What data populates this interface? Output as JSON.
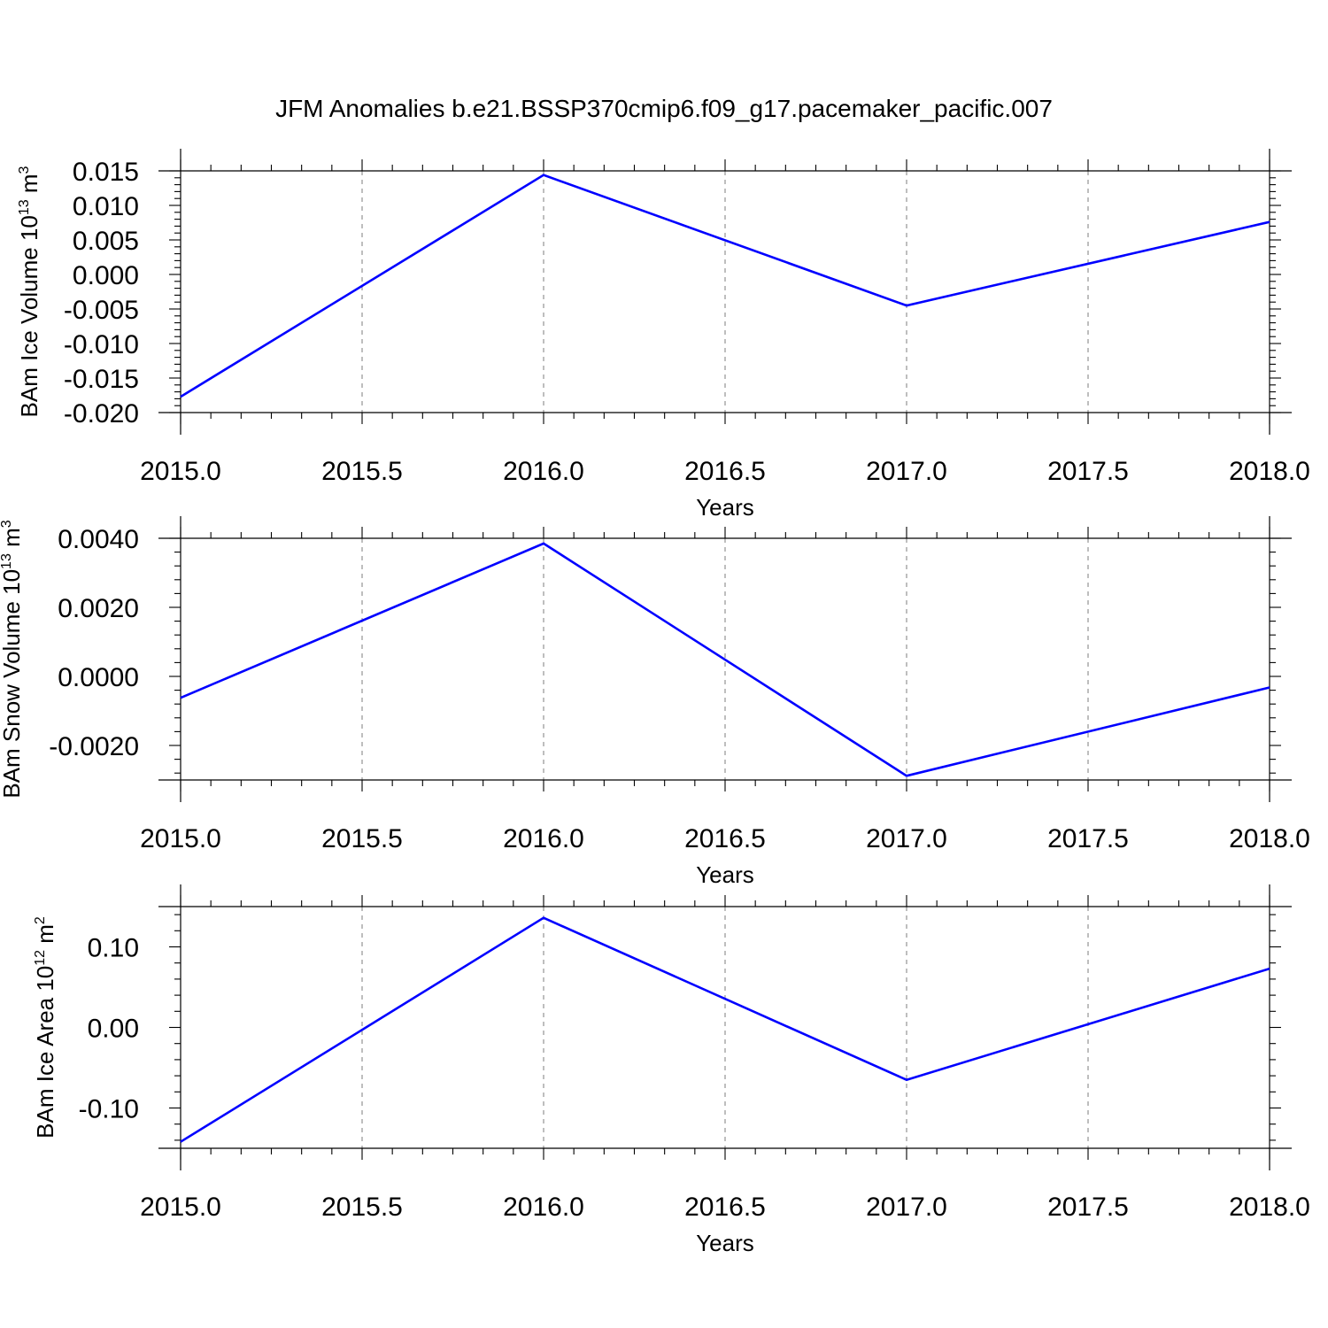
{
  "title": "JFM Anomalies b.e21.BSSP370cmip6.f09_g17.pacemaker_pacific.007",
  "colors": {
    "series": "#0000ff",
    "axes": "#000000",
    "background": "#ffffff"
  },
  "chart_data": [
    {
      "type": "line",
      "title": "",
      "xlabel": "Years",
      "ylabel": "BAm Ice Volume 10",
      "ylabel_exp": "13",
      "ylabel_unit": " m",
      "ylabel_unit_exp": "3",
      "x": [
        2015.0,
        2016.0,
        2017.0,
        2018.0
      ],
      "series": [
        {
          "values": [
            -0.0177,
            0.0144,
            -0.0045,
            0.0076
          ]
        }
      ],
      "xlim": [
        2015.0,
        2018.0
      ],
      "ylim": [
        -0.02,
        0.015
      ],
      "xticks": [
        2015.0,
        2015.5,
        2016.0,
        2016.5,
        2017.0,
        2017.5,
        2018.0
      ],
      "xtick_labels": [
        "2015.0",
        "2015.5",
        "2016.0",
        "2016.5",
        "2017.0",
        "2017.5",
        "2018.0"
      ],
      "yticks": [
        -0.02,
        -0.015,
        -0.01,
        -0.005,
        0.0,
        0.005,
        0.01,
        0.015
      ],
      "ytick_labels": [
        "-0.020",
        "-0.015",
        "-0.010",
        "-0.005",
        "0.000",
        "0.005",
        "0.010",
        "0.015"
      ],
      "grid": "vertical dashed"
    },
    {
      "type": "line",
      "title": "",
      "xlabel": "Years",
      "ylabel": "BAm Snow Volume 10",
      "ylabel_exp": "13",
      "ylabel_unit": " m",
      "ylabel_unit_exp": "3",
      "x": [
        2015.0,
        2016.0,
        2017.0,
        2018.0
      ],
      "series": [
        {
          "values": [
            -0.00062,
            0.00385,
            -0.00288,
            -0.00032
          ]
        }
      ],
      "xlim": [
        2015.0,
        2018.0
      ],
      "ylim": [
        -0.003,
        0.004
      ],
      "xticks": [
        2015.0,
        2015.5,
        2016.0,
        2016.5,
        2017.0,
        2017.5,
        2018.0
      ],
      "xtick_labels": [
        "2015.0",
        "2015.5",
        "2016.0",
        "2016.5",
        "2017.0",
        "2017.5",
        "2018.0"
      ],
      "yticks": [
        -0.002,
        0.0,
        0.002,
        0.004
      ],
      "ytick_labels": [
        "-0.0020",
        "0.0000",
        "0.0020",
        "0.0040"
      ],
      "grid": "vertical dashed"
    },
    {
      "type": "line",
      "title": "",
      "xlabel": "Years",
      "ylabel": "BAm Ice Area 10",
      "ylabel_exp": "12",
      "ylabel_unit": " m",
      "ylabel_unit_exp": "2",
      "x": [
        2015.0,
        2016.0,
        2017.0,
        2018.0
      ],
      "series": [
        {
          "values": [
            -0.142,
            0.136,
            -0.065,
            0.073
          ]
        }
      ],
      "xlim": [
        2015.0,
        2018.0
      ],
      "ylim": [
        -0.15,
        0.15
      ],
      "xticks": [
        2015.0,
        2015.5,
        2016.0,
        2016.5,
        2017.0,
        2017.5,
        2018.0
      ],
      "xtick_labels": [
        "2015.0",
        "2015.5",
        "2016.0",
        "2016.5",
        "2017.0",
        "2017.5",
        "2018.0"
      ],
      "yticks": [
        -0.1,
        0.0,
        0.1
      ],
      "ytick_labels": [
        "-0.10",
        "0.00",
        "0.10"
      ],
      "grid": "vertical dashed"
    }
  ]
}
